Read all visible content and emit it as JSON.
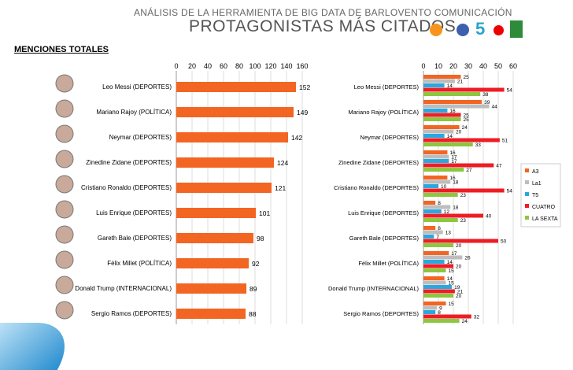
{
  "header": {
    "subtitle": "ANÁLISIS DE LA HERRAMIENTA DE BIG DATA DE BARLOVENTO COMUNICACIÓN",
    "title": "PROTAGONISTAS MÁS CITADOS",
    "logos": [
      "antena3-logo",
      "la1-logo",
      "telecinco-logo",
      "cuatro-logo",
      "lasexta-logo"
    ]
  },
  "section_label": "MENCIONES TOTALES",
  "chart_data": [
    {
      "type": "bar",
      "orientation": "horizontal",
      "categories": [
        "Leo Messi (DEPORTES)",
        "Mariano Rajoy (POLÍTICA)",
        "Neymar (DEPORTES)",
        "Zinedine Zidane (DEPORTES)",
        "Cristiano Ronaldo (DEPORTES)",
        "Luis Enrique (DEPORTES)",
        "Gareth Bale (DEPORTES)",
        "Félix Millet (POLÍTICA)",
        "Donald Trump (INTERNACIONAL)",
        "Sergio Ramos (DEPORTES)"
      ],
      "values": [
        152,
        149,
        142,
        124,
        121,
        101,
        98,
        92,
        89,
        88
      ],
      "xlim": [
        0,
        160
      ],
      "xticks": [
        0,
        20,
        40,
        60,
        80,
        100,
        120,
        140,
        160
      ],
      "color": "#f26522",
      "grid": true
    },
    {
      "type": "bar",
      "orientation": "horizontal",
      "categories": [
        "Leo Messi (DEPORTES)",
        "Mariano Rajoy (POLÍTICA)",
        "Neymar (DEPORTES)",
        "Zinedine Zidane (DEPORTES)",
        "Cristiano Ronaldo (DEPORTES)",
        "Luis Enrique (DEPORTES)",
        "Gareth Bale (DEPORTES)",
        "Félix Millet (POLÍTICA)",
        "Donald Trump (INTERNACIONAL)",
        "Sergio Ramos (DEPORTES)"
      ],
      "xlim": [
        0,
        60
      ],
      "xticks": [
        0,
        10,
        20,
        30,
        40,
        50,
        60
      ],
      "grid": true,
      "legend": "right",
      "series": [
        {
          "name": "A3",
          "color": "#f26522",
          "values": [
            25,
            39,
            24,
            16,
            16,
            8,
            8,
            17,
            14,
            15
          ]
        },
        {
          "name": "La1",
          "color": "#bdbdbd",
          "values": [
            21,
            44,
            20,
            17,
            18,
            18,
            13,
            26,
            15,
            9
          ]
        },
        {
          "name": "T5",
          "color": "#29a8e0",
          "values": [
            14,
            16,
            14,
            17,
            10,
            12,
            7,
            14,
            19,
            8
          ]
        },
        {
          "name": "CUATRO",
          "color": "#ee1c24",
          "values": [
            54,
            25,
            51,
            47,
            54,
            40,
            50,
            20,
            21,
            32
          ]
        },
        {
          "name": "LA SEXTA",
          "color": "#8dc63f",
          "values": [
            38,
            25,
            33,
            27,
            23,
            23,
            20,
            15,
            20,
            24
          ]
        }
      ]
    }
  ]
}
